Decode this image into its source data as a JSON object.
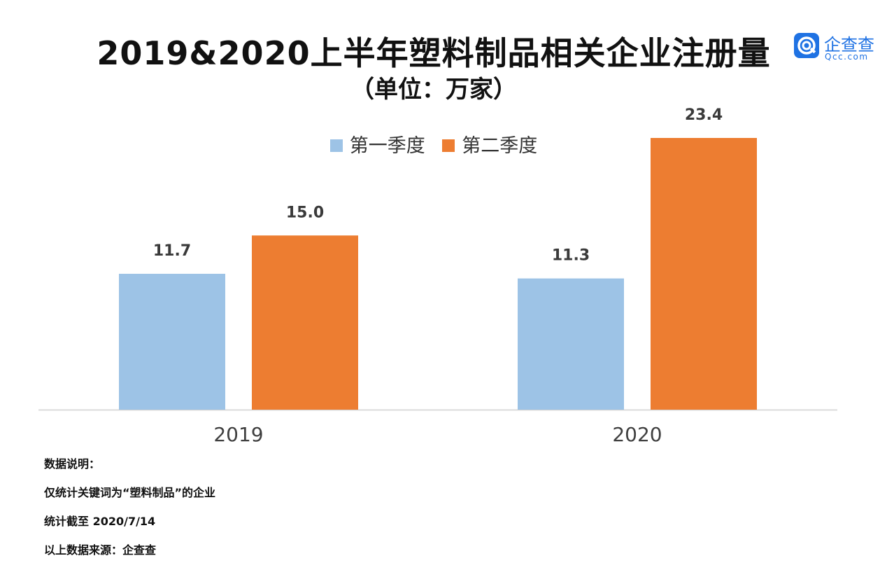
{
  "chart_data": {
    "type": "bar",
    "title": "2019&2020上半年塑料制品相关企业注册量",
    "subtitle": "（单位：万家）",
    "categories": [
      "2019",
      "2020"
    ],
    "series": [
      {
        "name": "第一季度",
        "color": "#9dc3e6",
        "values": [
          11.7,
          11.3
        ],
        "labels": [
          "11.7",
          "11.3"
        ]
      },
      {
        "name": "第二季度",
        "color": "#ed7d31",
        "values": [
          15.0,
          23.4
        ],
        "labels": [
          "15.0",
          "23.4"
        ]
      }
    ],
    "ylim": [
      0,
      23.4
    ],
    "legend_position": "top-center",
    "grid": false
  },
  "logo": {
    "name": "企查查",
    "sub": "Qcc.com",
    "color": "#1f72e3"
  },
  "notes": [
    "数据说明：",
    "仅统计关键词为“塑料制品”的企业",
    "统计截至 2020/7/14",
    "以上数据来源：企查查"
  ]
}
